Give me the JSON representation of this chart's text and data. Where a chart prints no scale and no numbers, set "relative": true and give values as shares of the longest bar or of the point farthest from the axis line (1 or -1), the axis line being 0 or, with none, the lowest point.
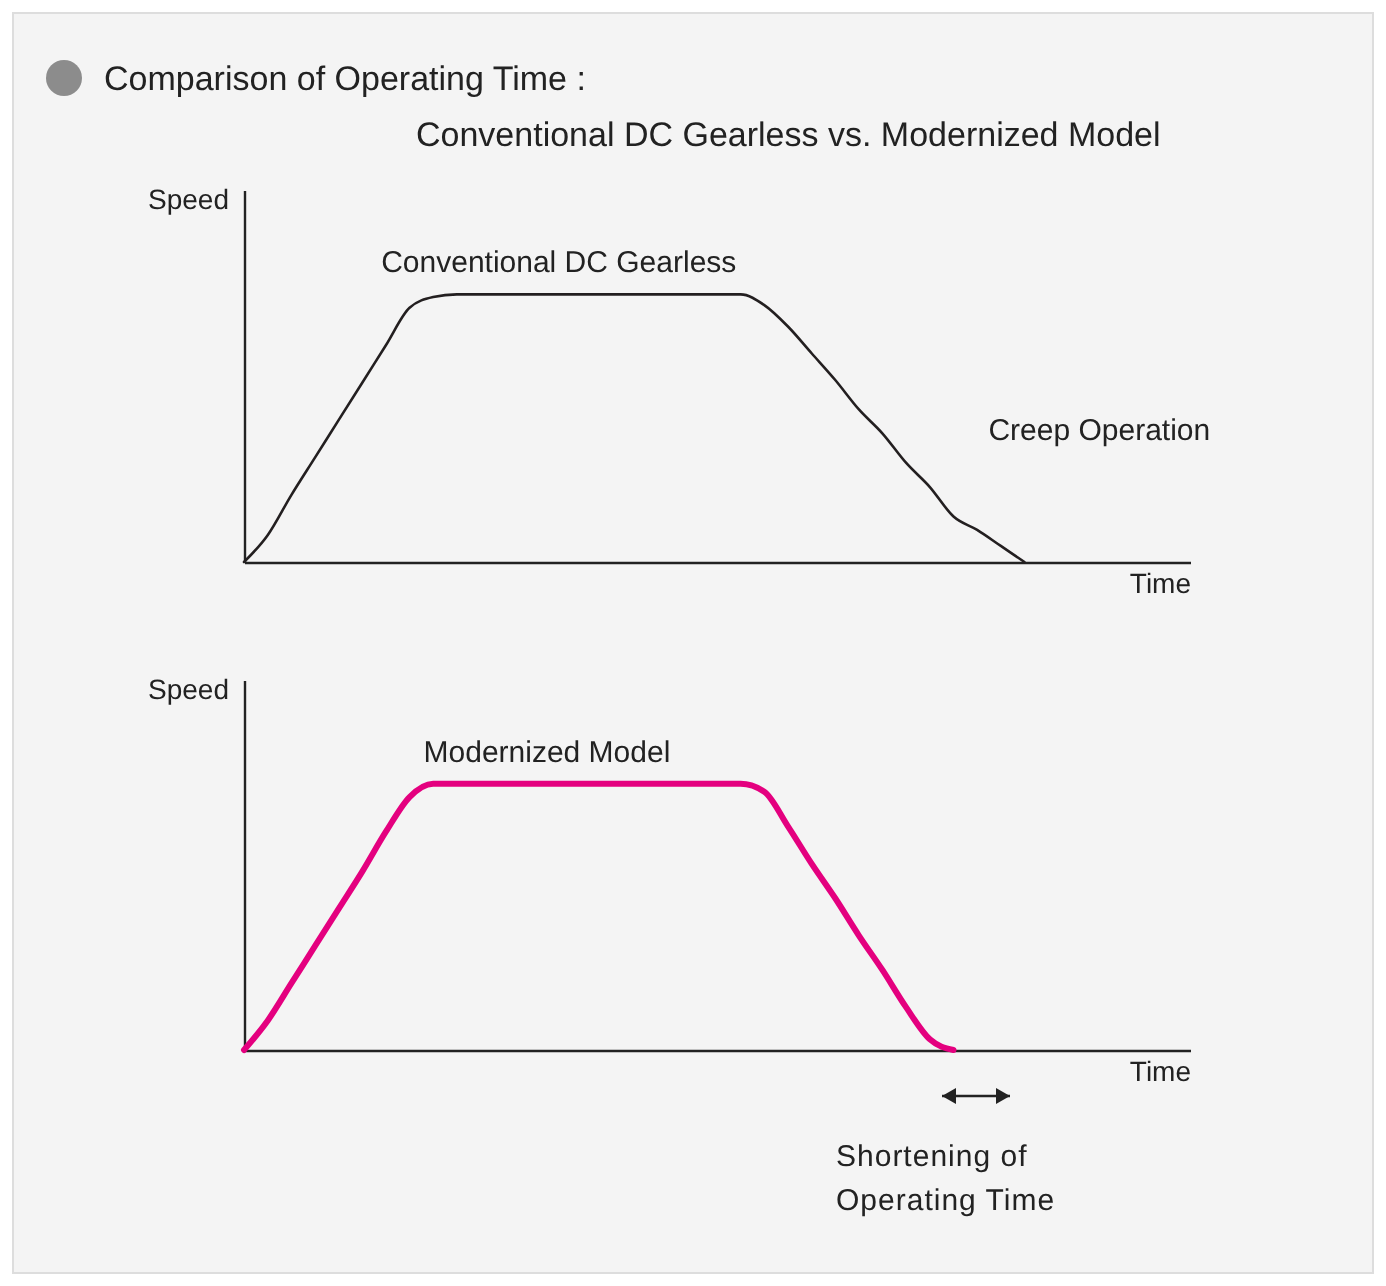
{
  "chart_data": [
    {
      "type": "line",
      "title": "Comparison of Operating Time :",
      "subtitle": "Conventional DC Gearless vs. Modernized Model",
      "xlabel": "Time",
      "ylabel": "Speed",
      "relative": true,
      "grid": false,
      "marker": "none",
      "line_style": "solid",
      "annotations": [
        "Creep Operation"
      ],
      "categories": [
        null,
        null,
        null,
        null,
        null,
        null,
        null,
        null,
        null,
        null,
        null,
        null,
        null,
        null,
        null,
        null,
        null,
        null,
        null,
        null,
        null,
        null,
        null,
        null,
        null,
        null,
        null,
        null,
        null,
        null,
        null,
        null,
        null,
        null,
        null,
        null,
        null,
        null,
        null,
        null,
        null
      ],
      "series": [
        {
          "name": "Conventional DC Gearless",
          "color": "#231f20",
          "values": [
            0,
            0.1,
            0.25,
            0.39,
            0.53,
            0.67,
            0.81,
            0.95,
            0.99,
            1,
            1,
            1,
            1,
            1,
            1,
            1,
            1,
            1,
            1,
            1,
            1,
            1,
            0.96,
            0.88,
            0.78,
            0.68,
            0.57,
            0.48,
            0.37,
            0.28,
            0.17,
            0.12,
            0.06,
            0,
            null,
            null,
            null,
            null,
            null,
            null,
            null
          ]
        }
      ]
    },
    {
      "type": "line",
      "xlabel": "Time",
      "ylabel": "Speed",
      "relative": true,
      "grid": false,
      "marker": "none",
      "line_style": "solid",
      "annotations": [
        "Shortening of Operating Time"
      ],
      "categories": [
        null,
        null,
        null,
        null,
        null,
        null,
        null,
        null,
        null,
        null,
        null,
        null,
        null,
        null,
        null,
        null,
        null,
        null,
        null,
        null,
        null,
        null,
        null,
        null,
        null,
        null,
        null,
        null,
        null,
        null,
        null,
        null,
        null,
        null,
        null,
        null,
        null,
        null,
        null,
        null,
        null
      ],
      "series": [
        {
          "name": "Modernized Model",
          "color": "#e4007f",
          "values": [
            0,
            0.11,
            0.25,
            0.39,
            0.53,
            0.67,
            0.82,
            0.95,
            1,
            1,
            1,
            1,
            1,
            1,
            1,
            1,
            1,
            1,
            1,
            1,
            1,
            1,
            0.97,
            0.84,
            0.7,
            0.57,
            0.43,
            0.3,
            0.16,
            0.04,
            0,
            null,
            null,
            null,
            null,
            null,
            null,
            null,
            null,
            null,
            null
          ]
        }
      ]
    }
  ]
}
